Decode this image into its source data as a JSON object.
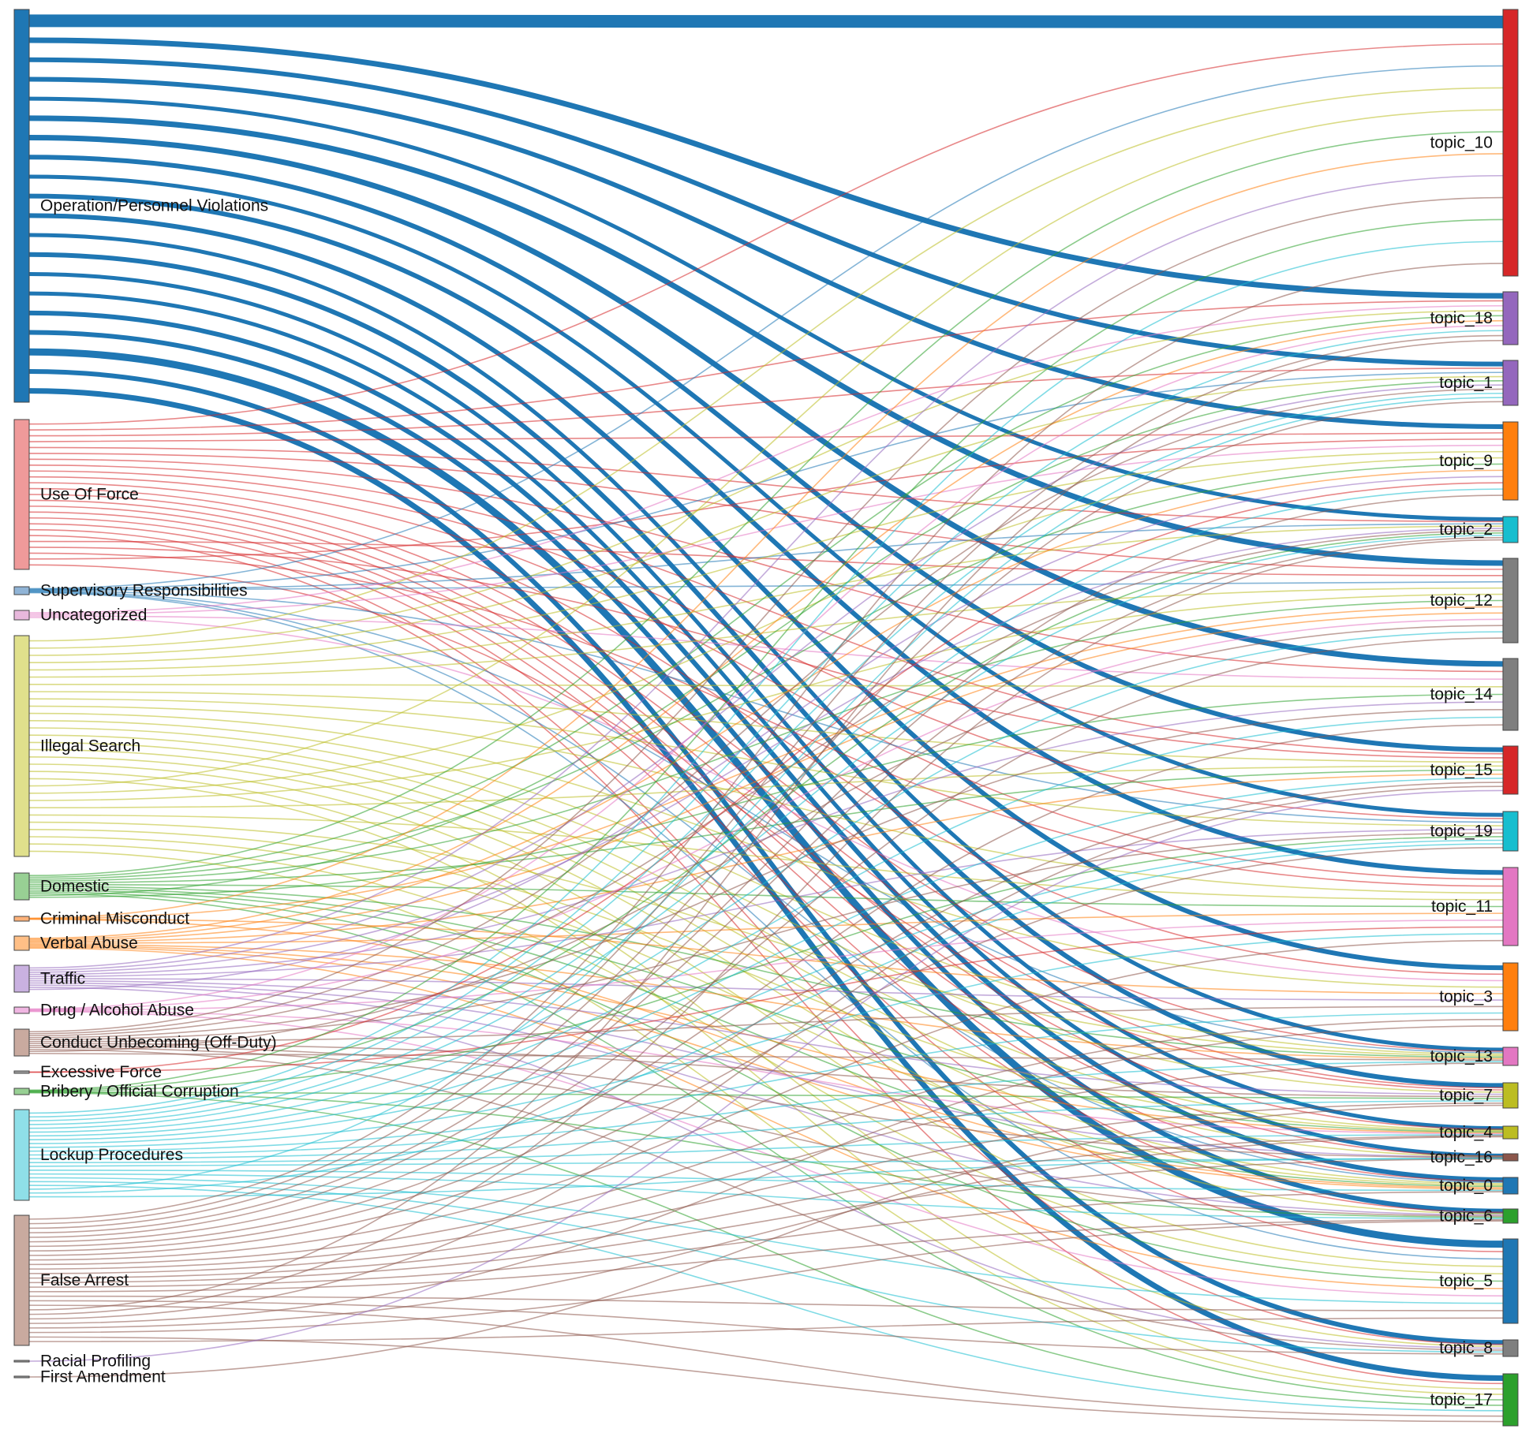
{
  "diagram": {
    "type": "sankey",
    "sources": [
      {
        "label": "Operation/Personnel Violations",
        "color": "#1f77b4"
      },
      {
        "label": "Use Of Force",
        "color": "#ef9a9a"
      },
      {
        "label": "Supervisory Responsibilities",
        "color": "#90b4d6"
      },
      {
        "label": "Uncategorized",
        "color": "#e8b8dc"
      },
      {
        "label": "Illegal Search",
        "color": "#e0e08c"
      },
      {
        "label": "Domestic",
        "color": "#98d094"
      },
      {
        "label": "Criminal Misconduct",
        "color": "#ffb27a"
      },
      {
        "label": "Verbal Abuse",
        "color": "#ffbf86"
      },
      {
        "label": "Traffic",
        "color": "#c9b1e0"
      },
      {
        "label": "Drug / Alcohol Abuse",
        "color": "#f0b6e2"
      },
      {
        "label": "Conduct Unbecoming (Off-Duty)",
        "color": "#c9aa9f"
      },
      {
        "label": "Excessive Force",
        "color": "#a0a0a0"
      },
      {
        "label": "Bribery / Official Corruption",
        "color": "#98d094"
      },
      {
        "label": "Lockup Procedures",
        "color": "#8fdfe8"
      },
      {
        "label": "False Arrest",
        "color": "#c9aa9f"
      },
      {
        "label": "Racial Profiling",
        "color": "#a0a0a0"
      },
      {
        "label": "First Amendment",
        "color": "#a0a0a0"
      }
    ],
    "targets": [
      {
        "label": "topic_10",
        "color": "#d62728"
      },
      {
        "label": "topic_18",
        "color": "#9467bd"
      },
      {
        "label": "topic_1",
        "color": "#9467bd"
      },
      {
        "label": "topic_9",
        "color": "#ff7f0e"
      },
      {
        "label": "topic_2",
        "color": "#17becf"
      },
      {
        "label": "topic_12",
        "color": "#7f7f7f"
      },
      {
        "label": "topic_14",
        "color": "#7f7f7f"
      },
      {
        "label": "topic_15",
        "color": "#d62728"
      },
      {
        "label": "topic_19",
        "color": "#17becf"
      },
      {
        "label": "topic_11",
        "color": "#e377c2"
      },
      {
        "label": "topic_3",
        "color": "#ff7f0e"
      },
      {
        "label": "topic_13",
        "color": "#e377c2"
      },
      {
        "label": "topic_7",
        "color": "#bcbd22"
      },
      {
        "label": "topic_4",
        "color": "#bcbd22"
      },
      {
        "label": "topic_16",
        "color": "#8c564b"
      },
      {
        "label": "topic_0",
        "color": "#1f77b4"
      },
      {
        "label": "topic_6",
        "color": "#2ca02c"
      },
      {
        "label": "topic_5",
        "color": "#1f77b4"
      },
      {
        "label": "topic_8",
        "color": "#7f7f7f"
      },
      {
        "label": "topic_17",
        "color": "#2ca02c"
      }
    ],
    "link_colors": {
      "Operation/Personnel Violations": "#1f77b4",
      "Use Of Force": "#d62728",
      "Supervisory Responsibilities": "#1f77b4",
      "Uncategorized": "#e377c2",
      "Illegal Search": "#bcbd22",
      "Domestic": "#2ca02c",
      "Criminal Misconduct": "#ff7f0e",
      "Verbal Abuse": "#ff7f0e",
      "Traffic": "#9467bd",
      "Drug / Alcohol Abuse": "#e377c2",
      "Conduct Unbecoming (Off-Duty)": "#8c564b",
      "Excessive Force": "#d62728",
      "Bribery / Official Corruption": "#2ca02c",
      "Lockup Procedures": "#17becf",
      "False Arrest": "#8c564b",
      "Racial Profiling": "#9467bd",
      "First Amendment": "#8c564b"
    }
  }
}
